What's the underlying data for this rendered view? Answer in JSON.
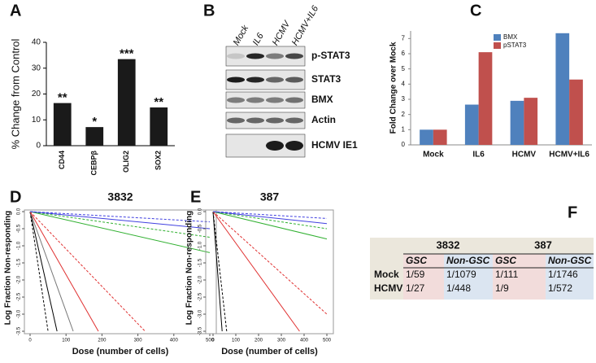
{
  "chart_data": [
    {
      "type": "bar",
      "panel_label": "A",
      "ylabel": "% Change from Control",
      "categories": [
        "CD44",
        "CEBPβ",
        "OLIG2",
        "SOX2"
      ],
      "values": [
        16.5,
        7.2,
        33.5,
        14.8
      ],
      "annotations": [
        "**",
        "*",
        "***",
        "**"
      ],
      "color": "#1a1a1a",
      "ylim": [
        0,
        40
      ],
      "yticks": [
        0,
        10,
        20,
        30,
        40
      ]
    },
    {
      "type": "grouped_bar",
      "panel_label": "C",
      "ylabel": "Fold Change over Mock",
      "categories": [
        "Mock",
        "IL6",
        "HCMV",
        "HCMV+IL6"
      ],
      "series": [
        {
          "name": "BMX",
          "color": "#4f81bd",
          "values": [
            1,
            2.65,
            2.9,
            7.35
          ]
        },
        {
          "name": "pSTAT3",
          "color": "#c0504d",
          "values": [
            1,
            6.1,
            3.1,
            4.3
          ]
        }
      ],
      "ylim": [
        0,
        7.5
      ],
      "yticks": [
        0,
        1,
        2,
        3,
        4,
        5,
        6,
        7
      ]
    },
    {
      "type": "line",
      "panel_label": "D",
      "title": "3832",
      "xlabel": "Dose (number of cells)",
      "ylabel": "Log Fraction Non-responding",
      "xlim": [
        0,
        500
      ],
      "xticks": [
        0,
        100,
        200,
        300,
        400,
        500
      ],
      "ylim": [
        -3.5,
        0
      ],
      "yticks": [
        {
          "value": -3.5,
          "label": "-3.5"
        },
        {
          "value": -3,
          "label": "-3.0"
        },
        {
          "value": -2.5,
          "label": "-2.5"
        },
        {
          "value": -2,
          "label": "-2.0"
        },
        {
          "value": -1.5,
          "label": "-1.5"
        },
        {
          "value": -1,
          "label": "-1.0"
        },
        {
          "value": -0.5,
          "label": "-0.5"
        },
        {
          "value": 0,
          "label": "0.0"
        }
      ],
      "series": [
        {
          "color": "#000000",
          "dashed": false,
          "x": [
            0,
            75
          ],
          "values": [
            0,
            -3.5
          ]
        },
        {
          "color": "#000000",
          "dashed": true,
          "x": [
            0,
            50
          ],
          "values": [
            0,
            -3.5
          ]
        },
        {
          "color": "#777777",
          "dashed": false,
          "x": [
            0,
            120
          ],
          "values": [
            0,
            -3.5
          ]
        },
        {
          "color": "#e03030",
          "dashed": false,
          "x": [
            0,
            190
          ],
          "values": [
            0,
            -3.5
          ]
        },
        {
          "color": "#e03030",
          "dashed": true,
          "x": [
            0,
            320
          ],
          "values": [
            0,
            -3.5
          ]
        },
        {
          "color": "#30b030",
          "dashed": false,
          "x": [
            0,
            500
          ],
          "values": [
            0,
            -1.2
          ]
        },
        {
          "color": "#30b030",
          "dashed": true,
          "x": [
            0,
            500
          ],
          "values": [
            0,
            -0.75
          ]
        },
        {
          "color": "#4040e0",
          "dashed": false,
          "x": [
            0,
            500
          ],
          "values": [
            0,
            -0.5
          ]
        },
        {
          "color": "#4040e0",
          "dashed": true,
          "x": [
            0,
            500
          ],
          "values": [
            0,
            -0.3
          ]
        }
      ]
    },
    {
      "type": "line",
      "panel_label": "E",
      "title": "387",
      "xlabel": "Dose (number of cells)",
      "ylabel": "Log Fraction Non-responding",
      "xlim": [
        0,
        500
      ],
      "xticks": [
        0,
        100,
        200,
        300,
        400,
        500
      ],
      "ylim": [
        -3.5,
        0
      ],
      "yticks": [
        {
          "value": -3.5,
          "label": "-3.5"
        },
        {
          "value": -3,
          "label": "-3.0"
        },
        {
          "value": -2.5,
          "label": "-2.5"
        },
        {
          "value": -2,
          "label": "-2.0"
        },
        {
          "value": -1.5,
          "label": "-1.5"
        },
        {
          "value": -1,
          "label": "-1.0"
        },
        {
          "value": -0.5,
          "label": "-0.5"
        },
        {
          "value": 0,
          "label": "0.0"
        }
      ],
      "series": [
        {
          "color": "#000000",
          "dashed": false,
          "x": [
            0,
            40
          ],
          "values": [
            0,
            -3.5
          ]
        },
        {
          "color": "#000000",
          "dashed": true,
          "x": [
            0,
            60
          ],
          "values": [
            0,
            -3.5
          ]
        },
        {
          "color": "#e03030",
          "dashed": false,
          "x": [
            0,
            380
          ],
          "values": [
            0,
            -3.5
          ]
        },
        {
          "color": "#e03030",
          "dashed": true,
          "x": [
            0,
            500
          ],
          "values": [
            0,
            -3
          ]
        },
        {
          "color": "#30b030",
          "dashed": false,
          "x": [
            0,
            500
          ],
          "values": [
            0,
            -0.8
          ]
        },
        {
          "color": "#30b030",
          "dashed": true,
          "x": [
            0,
            500
          ],
          "values": [
            0,
            -0.5
          ]
        },
        {
          "color": "#4040e0",
          "dashed": false,
          "x": [
            0,
            500
          ],
          "values": [
            0,
            -0.35
          ]
        },
        {
          "color": "#4040e0",
          "dashed": true,
          "x": [
            0,
            500
          ],
          "values": [
            0,
            -0.2
          ]
        }
      ]
    }
  ],
  "blot": {
    "panel_label": "B",
    "lanes": [
      "Mock",
      "IL6",
      "HCMV",
      "HCMV+IL6"
    ],
    "rows": [
      "p-STAT3",
      "STAT3",
      "BMX",
      "Actin",
      "HCMV IE1"
    ]
  },
  "table": {
    "panel_label": "F",
    "groups": [
      "3832",
      "387"
    ],
    "columns": [
      "GSC",
      "Non-GSC",
      "GSC",
      "Non-GSC"
    ],
    "rows": [
      [
        "Mock",
        "1/59",
        "1/1079",
        "1/111",
        "1/1746"
      ],
      [
        "HCMV",
        "1/27",
        "1/448",
        "1/9",
        "1/572"
      ]
    ]
  }
}
